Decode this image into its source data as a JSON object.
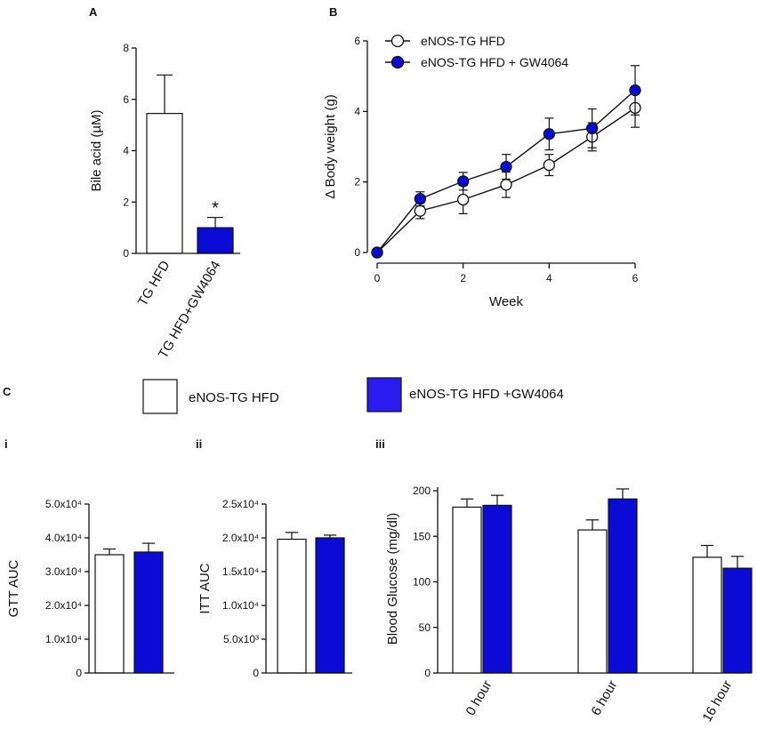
{
  "colors": {
    "treated": "#0b0bd6",
    "legend_treated": "#2a1cf0",
    "control": "#ffffff",
    "ink": "#111111"
  },
  "panels": {
    "A": {
      "letter": "A"
    },
    "B": {
      "letter": "B"
    },
    "C": {
      "letter": "C",
      "sub_i": "i",
      "sub_ii": "ii",
      "sub_iii": "iii",
      "legend": [
        "eNOS-TG HFD",
        "eNOS-TG HFD +GW4064"
      ]
    }
  },
  "chart_data": [
    {
      "id": "A",
      "type": "bar",
      "title": "",
      "xlabel": "",
      "ylabel": "Bile acid (µM)",
      "ylim": [
        0,
        8
      ],
      "yticks": [
        "0",
        "2",
        "4",
        "6",
        "8"
      ],
      "ytick_values": [
        0,
        2,
        4,
        6,
        8
      ],
      "categories": [
        "TG HFD",
        "TG HFD+GW4064"
      ],
      "values": [
        5.45,
        1.0
      ],
      "errors": [
        1.5,
        0.4
      ],
      "annotations": [
        "",
        "*"
      ]
    },
    {
      "id": "B",
      "type": "line",
      "title": "",
      "xlabel": "Week",
      "ylabel": "Δ Body weight (g)",
      "xlim": [
        0,
        6
      ],
      "ylim": [
        0,
        6
      ],
      "xticks": [
        "0",
        "2",
        "4",
        "6"
      ],
      "xtick_values": [
        0,
        2,
        4,
        6
      ],
      "yticks": [
        "0",
        "2",
        "4",
        "6"
      ],
      "ytick_values": [
        0,
        2,
        4,
        6
      ],
      "legend_position": "top-left",
      "x": [
        0,
        1,
        2,
        3,
        4,
        5,
        6
      ],
      "series": [
        {
          "name": "eNOS-TG HFD",
          "marker": "open-circle",
          "values": [
            0,
            1.18,
            1.5,
            1.92,
            2.48,
            3.28,
            4.1
          ],
          "errors": [
            0,
            0.22,
            0.4,
            0.36,
            0.3,
            0.4,
            0.55
          ]
        },
        {
          "name": "eNOS-TG HFD + GW4064",
          "marker": "filled-circle",
          "values": [
            0,
            1.52,
            2.02,
            2.43,
            3.36,
            3.52,
            4.6
          ],
          "errors": [
            0,
            0.2,
            0.25,
            0.35,
            0.45,
            0.55,
            0.7
          ]
        }
      ]
    },
    {
      "id": "C-i",
      "type": "bar",
      "title": "",
      "xlabel": "",
      "ylabel": "GTT AUC",
      "ylim": [
        0,
        50000
      ],
      "yticks": [
        "0",
        "1.0x10⁴",
        "2.0x10⁴",
        "3.0x10⁴",
        "4.0x10⁴",
        "5.0x10⁴"
      ],
      "ytick_values": [
        0,
        10000,
        20000,
        30000,
        40000,
        50000
      ],
      "categories": [
        "eNOS-TG HFD",
        "eNOS-TG HFD +GW4064"
      ],
      "values": [
        35000,
        35800
      ],
      "errors": [
        1700,
        2600
      ]
    },
    {
      "id": "C-ii",
      "type": "bar",
      "title": "",
      "xlabel": "",
      "ylabel": "ITT AUC",
      "ylim": [
        0,
        25000
      ],
      "yticks": [
        "0",
        "5.0x10³",
        "1.0x10⁴",
        "1.5x10⁴",
        "2.0x10⁴",
        "2.5x10⁴"
      ],
      "ytick_values": [
        0,
        5000,
        10000,
        15000,
        20000,
        25000
      ],
      "categories": [
        "eNOS-TG HFD",
        "eNOS-TG HFD +GW4064"
      ],
      "values": [
        19800,
        20000
      ],
      "errors": [
        1000,
        400
      ]
    },
    {
      "id": "C-iii",
      "type": "bar",
      "title": "",
      "xlabel": "",
      "ylabel": "Blood Glucose (mg/dl)",
      "ylim": [
        0,
        210
      ],
      "yticks": [
        "0",
        "50",
        "100",
        "150",
        "200"
      ],
      "ytick_values": [
        0,
        50,
        100,
        150,
        200
      ],
      "categories": [
        "0 hour",
        "6 hour",
        "16 hour"
      ],
      "series": [
        {
          "name": "eNOS-TG HFD",
          "values": [
            182,
            157,
            127
          ],
          "errors": [
            9,
            11,
            13
          ]
        },
        {
          "name": "eNOS-TG HFD +GW4064",
          "values": [
            184,
            191,
            115
          ],
          "errors": [
            11,
            11,
            13
          ]
        }
      ]
    }
  ]
}
